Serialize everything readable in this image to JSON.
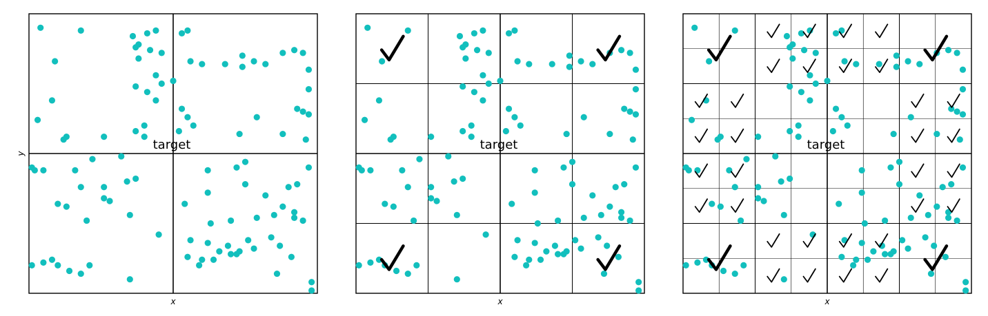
{
  "panels": [
    {
      "id": "level-1",
      "grid": 2,
      "target_label": "target",
      "xlabel": "x",
      "ylabel": "y",
      "big_checks": [],
      "small_checks": []
    },
    {
      "id": "level-2",
      "grid": 4,
      "target_label": "target",
      "xlabel": "x",
      "ylabel": "",
      "big_checks": [
        [
          0,
          0
        ],
        [
          3,
          0
        ],
        [
          0,
          3
        ],
        [
          3,
          3
        ]
      ],
      "small_checks": []
    },
    {
      "id": "level-3",
      "grid": 8,
      "target_label": "target",
      "xlabel": "x",
      "ylabel": "",
      "big_checks": [
        [
          0,
          0
        ],
        [
          6,
          0
        ],
        [
          0,
          6
        ],
        [
          6,
          6
        ]
      ],
      "small_checks": [
        [
          2,
          0
        ],
        [
          3,
          0
        ],
        [
          4,
          0
        ],
        [
          5,
          0
        ],
        [
          2,
          1
        ],
        [
          3,
          1
        ],
        [
          4,
          1
        ],
        [
          5,
          1
        ],
        [
          0,
          2
        ],
        [
          1,
          2
        ],
        [
          6,
          2
        ],
        [
          7,
          2
        ],
        [
          0,
          3
        ],
        [
          1,
          3
        ],
        [
          6,
          3
        ],
        [
          7,
          3
        ],
        [
          0,
          4
        ],
        [
          1,
          4
        ],
        [
          6,
          4
        ],
        [
          7,
          4
        ],
        [
          0,
          5
        ],
        [
          1,
          5
        ],
        [
          6,
          5
        ],
        [
          7,
          5
        ],
        [
          2,
          6
        ],
        [
          3,
          6
        ],
        [
          4,
          6
        ],
        [
          5,
          6
        ],
        [
          2,
          7
        ],
        [
          3,
          7
        ],
        [
          4,
          7
        ],
        [
          5,
          7
        ]
      ]
    }
  ],
  "points": [
    [
      0.04,
      0.95
    ],
    [
      0.18,
      0.94
    ],
    [
      0.36,
      0.92
    ],
    [
      0.41,
      0.93
    ],
    [
      0.44,
      0.94
    ],
    [
      0.53,
      0.93
    ],
    [
      0.55,
      0.94
    ],
    [
      0.38,
      0.89
    ],
    [
      0.42,
      0.87
    ],
    [
      0.37,
      0.88
    ],
    [
      0.46,
      0.86
    ],
    [
      0.74,
      0.85
    ],
    [
      0.78,
      0.83
    ],
    [
      0.88,
      0.86
    ],
    [
      0.92,
      0.87
    ],
    [
      0.95,
      0.86
    ],
    [
      0.56,
      0.83
    ],
    [
      0.6,
      0.82
    ],
    [
      0.68,
      0.82
    ],
    [
      0.74,
      0.81
    ],
    [
      0.09,
      0.83
    ],
    [
      0.38,
      0.84
    ],
    [
      0.82,
      0.82
    ],
    [
      0.97,
      0.8
    ],
    [
      0.44,
      0.78
    ],
    [
      0.5,
      0.76
    ],
    [
      0.46,
      0.75
    ],
    [
      0.37,
      0.74
    ],
    [
      0.41,
      0.72
    ],
    [
      0.97,
      0.73
    ],
    [
      0.08,
      0.69
    ],
    [
      0.44,
      0.69
    ],
    [
      0.93,
      0.66
    ],
    [
      0.95,
      0.65
    ],
    [
      0.97,
      0.64
    ],
    [
      0.79,
      0.63
    ],
    [
      0.03,
      0.62
    ],
    [
      0.53,
      0.66
    ],
    [
      0.55,
      0.63
    ],
    [
      0.4,
      0.6
    ],
    [
      0.37,
      0.58
    ],
    [
      0.4,
      0.56
    ],
    [
      0.26,
      0.56
    ],
    [
      0.13,
      0.56
    ],
    [
      0.57,
      0.6
    ],
    [
      0.52,
      0.58
    ],
    [
      0.73,
      0.57
    ],
    [
      0.88,
      0.57
    ],
    [
      0.96,
      0.55
    ],
    [
      0.12,
      0.55
    ],
    [
      0.01,
      0.45
    ],
    [
      0.02,
      0.44
    ],
    [
      0.05,
      0.44
    ],
    [
      0.16,
      0.44
    ],
    [
      0.22,
      0.48
    ],
    [
      0.32,
      0.49
    ],
    [
      0.37,
      0.41
    ],
    [
      0.62,
      0.44
    ],
    [
      0.72,
      0.45
    ],
    [
      0.75,
      0.47
    ],
    [
      0.97,
      0.45
    ],
    [
      0.1,
      0.32
    ],
    [
      0.18,
      0.38
    ],
    [
      0.26,
      0.34
    ],
    [
      0.34,
      0.4
    ],
    [
      0.54,
      0.32
    ],
    [
      0.62,
      0.36
    ],
    [
      0.75,
      0.39
    ],
    [
      0.79,
      0.27
    ],
    [
      0.85,
      0.28
    ],
    [
      0.92,
      0.27
    ],
    [
      0.95,
      0.26
    ],
    [
      0.82,
      0.35
    ],
    [
      0.9,
      0.38
    ],
    [
      0.93,
      0.39
    ],
    [
      0.13,
      0.31
    ],
    [
      0.26,
      0.38
    ],
    [
      0.28,
      0.33
    ],
    [
      0.2,
      0.26
    ],
    [
      0.35,
      0.28
    ],
    [
      0.45,
      0.21
    ],
    [
      0.63,
      0.25
    ],
    [
      0.62,
      0.18
    ],
    [
      0.7,
      0.26
    ],
    [
      0.69,
      0.17
    ],
    [
      0.7,
      0.14
    ],
    [
      0.76,
      0.19
    ],
    [
      0.84,
      0.2
    ],
    [
      0.87,
      0.17
    ],
    [
      0.72,
      0.14
    ],
    [
      0.56,
      0.19
    ],
    [
      0.88,
      0.31
    ],
    [
      0.92,
      0.29
    ],
    [
      0.01,
      0.1
    ],
    [
      0.05,
      0.11
    ],
    [
      0.08,
      0.12
    ],
    [
      0.1,
      0.1
    ],
    [
      0.14,
      0.08
    ],
    [
      0.21,
      0.1
    ],
    [
      0.18,
      0.07
    ],
    [
      0.35,
      0.05
    ],
    [
      0.55,
      0.13
    ],
    [
      0.59,
      0.1
    ],
    [
      0.6,
      0.12
    ],
    [
      0.64,
      0.12
    ],
    [
      0.66,
      0.15
    ],
    [
      0.73,
      0.15
    ],
    [
      0.78,
      0.16
    ],
    [
      0.86,
      0.07
    ],
    [
      0.91,
      0.13
    ],
    [
      0.98,
      0.04
    ],
    [
      0.98,
      0.01
    ]
  ]
}
